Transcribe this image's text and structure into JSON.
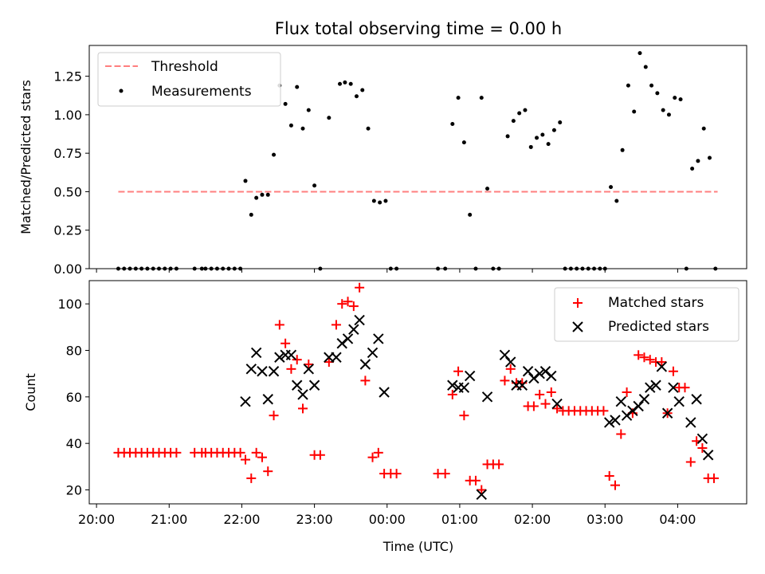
{
  "chart_data": [
    {
      "type": "scatter",
      "title": "Flux total observing time = 0.00 h",
      "xlabel": "",
      "ylabel": "Matched/Predicted stars",
      "xlim": [
        19.9,
        28.95
      ],
      "ylim": [
        0,
        1.45
      ],
      "yticks": [
        0,
        0.25,
        0.5,
        0.75,
        1.0,
        1.25
      ],
      "ytick_labels": [
        "0.00",
        "0.25",
        "0.50",
        "0.75",
        "1.00",
        "1.25"
      ],
      "legend_position": "top-left",
      "threshold": {
        "name": "Threshold",
        "value": 0.5,
        "x_range": [
          20.3,
          28.55
        ],
        "color": "#ff7f7f"
      },
      "series": [
        {
          "name": "Measurements",
          "marker": "dot",
          "color": "#000000",
          "points": [
            [
              20.3,
              0
            ],
            [
              20.38,
              0
            ],
            [
              20.46,
              0
            ],
            [
              20.54,
              0
            ],
            [
              20.62,
              0
            ],
            [
              20.7,
              0
            ],
            [
              20.78,
              0
            ],
            [
              20.86,
              0
            ],
            [
              20.94,
              0
            ],
            [
              21.02,
              0
            ],
            [
              21.1,
              0
            ],
            [
              21.35,
              0
            ],
            [
              21.45,
              0
            ],
            [
              21.5,
              0
            ],
            [
              21.58,
              0
            ],
            [
              21.66,
              0
            ],
            [
              21.74,
              0
            ],
            [
              21.82,
              0
            ],
            [
              21.9,
              0
            ],
            [
              21.98,
              0
            ],
            [
              22.05,
              0.57
            ],
            [
              22.13,
              0.35
            ],
            [
              22.2,
              0.46
            ],
            [
              22.28,
              0.48
            ],
            [
              22.36,
              0.48
            ],
            [
              22.44,
              0.74
            ],
            [
              22.52,
              1.19
            ],
            [
              22.6,
              1.07
            ],
            [
              22.68,
              0.93
            ],
            [
              22.76,
              1.18
            ],
            [
              22.84,
              0.91
            ],
            [
              22.92,
              1.03
            ],
            [
              23.0,
              0.54
            ],
            [
              23.08,
              0
            ],
            [
              23.2,
              0.98
            ],
            [
              23.35,
              1.2
            ],
            [
              23.42,
              1.21
            ],
            [
              23.5,
              1.2
            ],
            [
              23.58,
              1.12
            ],
            [
              23.66,
              1.16
            ],
            [
              23.74,
              0.91
            ],
            [
              23.82,
              0.44
            ],
            [
              23.9,
              0.43
            ],
            [
              23.98,
              0.44
            ],
            [
              24.05,
              0
            ],
            [
              24.13,
              0
            ],
            [
              24.7,
              0
            ],
            [
              24.8,
              0
            ],
            [
              24.9,
              0.94
            ],
            [
              24.98,
              1.11
            ],
            [
              25.06,
              0.82
            ],
            [
              25.14,
              0.35
            ],
            [
              25.22,
              0
            ],
            [
              25.3,
              1.11
            ],
            [
              25.38,
              0.52
            ],
            [
              25.46,
              0
            ],
            [
              25.54,
              0
            ],
            [
              25.66,
              0.86
            ],
            [
              25.74,
              0.96
            ],
            [
              25.82,
              1.01
            ],
            [
              25.9,
              1.03
            ],
            [
              25.98,
              0.79
            ],
            [
              26.06,
              0.85
            ],
            [
              26.14,
              0.87
            ],
            [
              26.22,
              0.81
            ],
            [
              26.3,
              0.9
            ],
            [
              26.38,
              0.95
            ],
            [
              26.45,
              0
            ],
            [
              26.53,
              0
            ],
            [
              26.61,
              0
            ],
            [
              26.69,
              0
            ],
            [
              26.77,
              0
            ],
            [
              26.85,
              0
            ],
            [
              26.93,
              0
            ],
            [
              27.0,
              0
            ],
            [
              27.08,
              0.53
            ],
            [
              27.16,
              0.44
            ],
            [
              27.24,
              0.77
            ],
            [
              27.32,
              1.19
            ],
            [
              27.4,
              1.02
            ],
            [
              27.48,
              1.4
            ],
            [
              27.56,
              1.31
            ],
            [
              27.64,
              1.19
            ],
            [
              27.72,
              1.14
            ],
            [
              27.8,
              1.03
            ],
            [
              27.88,
              1.0
            ],
            [
              27.96,
              1.11
            ],
            [
              28.04,
              1.1
            ],
            [
              28.12,
              0
            ],
            [
              28.2,
              0.65
            ],
            [
              28.28,
              0.7
            ],
            [
              28.36,
              0.91
            ],
            [
              28.44,
              0.72
            ],
            [
              28.52,
              0
            ]
          ]
        }
      ]
    },
    {
      "type": "scatter",
      "title": "",
      "xlabel": "Time (UTC)",
      "ylabel": "Count",
      "xlim": [
        19.9,
        28.95
      ],
      "ylim": [
        14,
        110
      ],
      "xticks": [
        20,
        21,
        22,
        23,
        24,
        25,
        26,
        27,
        28
      ],
      "xtick_labels": [
        "20:00",
        "21:00",
        "22:00",
        "23:00",
        "00:00",
        "01:00",
        "02:00",
        "03:00",
        "04:00"
      ],
      "yticks": [
        20,
        40,
        60,
        80,
        100
      ],
      "ytick_labels": [
        "20",
        "40",
        "60",
        "80",
        "100"
      ],
      "legend_position": "top-right",
      "series": [
        {
          "name": "Matched stars",
          "marker": "plus",
          "color": "#ff0000",
          "points": [
            [
              20.3,
              36
            ],
            [
              20.38,
              36
            ],
            [
              20.46,
              36
            ],
            [
              20.54,
              36
            ],
            [
              20.62,
              36
            ],
            [
              20.7,
              36
            ],
            [
              20.78,
              36
            ],
            [
              20.86,
              36
            ],
            [
              20.94,
              36
            ],
            [
              21.02,
              36
            ],
            [
              21.1,
              36
            ],
            [
              21.35,
              36
            ],
            [
              21.45,
              36
            ],
            [
              21.5,
              36
            ],
            [
              21.58,
              36
            ],
            [
              21.66,
              36
            ],
            [
              21.74,
              36
            ],
            [
              21.82,
              36
            ],
            [
              21.9,
              36
            ],
            [
              21.98,
              36
            ],
            [
              22.05,
              33
            ],
            [
              22.13,
              25
            ],
            [
              22.2,
              36
            ],
            [
              22.28,
              34
            ],
            [
              22.36,
              28
            ],
            [
              22.44,
              52
            ],
            [
              22.52,
              91
            ],
            [
              22.6,
              83
            ],
            [
              22.68,
              72
            ],
            [
              22.76,
              76
            ],
            [
              22.84,
              55
            ],
            [
              22.92,
              74
            ],
            [
              23.0,
              35
            ],
            [
              23.08,
              35
            ],
            [
              23.2,
              75
            ],
            [
              23.3,
              91
            ],
            [
              23.38,
              100
            ],
            [
              23.46,
              101
            ],
            [
              23.54,
              99
            ],
            [
              23.62,
              107
            ],
            [
              23.7,
              67
            ],
            [
              23.8,
              34
            ],
            [
              23.88,
              36
            ],
            [
              23.96,
              27
            ],
            [
              24.05,
              27
            ],
            [
              24.13,
              27
            ],
            [
              24.7,
              27
            ],
            [
              24.8,
              27
            ],
            [
              24.9,
              61
            ],
            [
              24.98,
              71
            ],
            [
              25.06,
              52
            ],
            [
              25.14,
              24
            ],
            [
              25.22,
              24
            ],
            [
              25.3,
              20
            ],
            [
              25.38,
              31
            ],
            [
              25.46,
              31
            ],
            [
              25.54,
              31
            ],
            [
              25.62,
              67
            ],
            [
              25.7,
              72
            ],
            [
              25.78,
              66
            ],
            [
              25.86,
              66
            ],
            [
              25.94,
              56
            ],
            [
              26.02,
              56
            ],
            [
              26.1,
              61
            ],
            [
              26.18,
              57
            ],
            [
              26.26,
              62
            ],
            [
              26.34,
              55
            ],
            [
              26.42,
              54
            ],
            [
              26.5,
              54
            ],
            [
              26.58,
              54
            ],
            [
              26.66,
              54
            ],
            [
              26.74,
              54
            ],
            [
              26.82,
              54
            ],
            [
              26.9,
              54
            ],
            [
              26.98,
              54
            ],
            [
              27.06,
              26
            ],
            [
              27.14,
              22
            ],
            [
              27.22,
              44
            ],
            [
              27.3,
              62
            ],
            [
              27.38,
              53
            ],
            [
              27.46,
              78
            ],
            [
              27.54,
              77
            ],
            [
              27.62,
              76
            ],
            [
              27.7,
              75
            ],
            [
              27.78,
              75
            ],
            [
              27.86,
              53
            ],
            [
              27.94,
              71
            ],
            [
              28.02,
              64
            ],
            [
              28.1,
              64
            ],
            [
              28.18,
              32
            ],
            [
              28.26,
              41
            ],
            [
              28.34,
              38
            ],
            [
              28.42,
              25
            ],
            [
              28.5,
              25
            ]
          ]
        },
        {
          "name": "Predicted stars",
          "marker": "x",
          "color": "#000000",
          "points": [
            [
              22.05,
              58
            ],
            [
              22.13,
              72
            ],
            [
              22.2,
              79
            ],
            [
              22.28,
              71
            ],
            [
              22.36,
              59
            ],
            [
              22.44,
              71
            ],
            [
              22.52,
              77
            ],
            [
              22.6,
              78
            ],
            [
              22.68,
              78
            ],
            [
              22.76,
              65
            ],
            [
              22.84,
              61
            ],
            [
              22.92,
              72
            ],
            [
              23.0,
              65
            ],
            [
              23.2,
              77
            ],
            [
              23.3,
              77
            ],
            [
              23.38,
              83
            ],
            [
              23.46,
              85
            ],
            [
              23.54,
              89
            ],
            [
              23.62,
              93
            ],
            [
              23.7,
              74
            ],
            [
              23.8,
              79
            ],
            [
              23.88,
              85
            ],
            [
              23.96,
              62
            ],
            [
              24.9,
              65
            ],
            [
              24.98,
              64
            ],
            [
              25.06,
              64
            ],
            [
              25.14,
              69
            ],
            [
              25.3,
              18
            ],
            [
              25.38,
              60
            ],
            [
              25.62,
              78
            ],
            [
              25.7,
              75
            ],
            [
              25.78,
              65
            ],
            [
              25.86,
              65
            ],
            [
              25.94,
              71
            ],
            [
              26.02,
              68
            ],
            [
              26.1,
              70
            ],
            [
              26.18,
              71
            ],
            [
              26.26,
              69
            ],
            [
              26.34,
              57
            ],
            [
              27.06,
              49
            ],
            [
              27.14,
              50
            ],
            [
              27.22,
              58
            ],
            [
              27.3,
              52
            ],
            [
              27.38,
              54
            ],
            [
              27.46,
              56
            ],
            [
              27.54,
              59
            ],
            [
              27.62,
              64
            ],
            [
              27.7,
              65
            ],
            [
              27.78,
              73
            ],
            [
              27.86,
              53
            ],
            [
              27.94,
              64
            ],
            [
              28.02,
              58
            ],
            [
              28.18,
              49
            ],
            [
              28.26,
              59
            ],
            [
              28.34,
              42
            ],
            [
              28.42,
              35
            ]
          ]
        }
      ]
    }
  ]
}
